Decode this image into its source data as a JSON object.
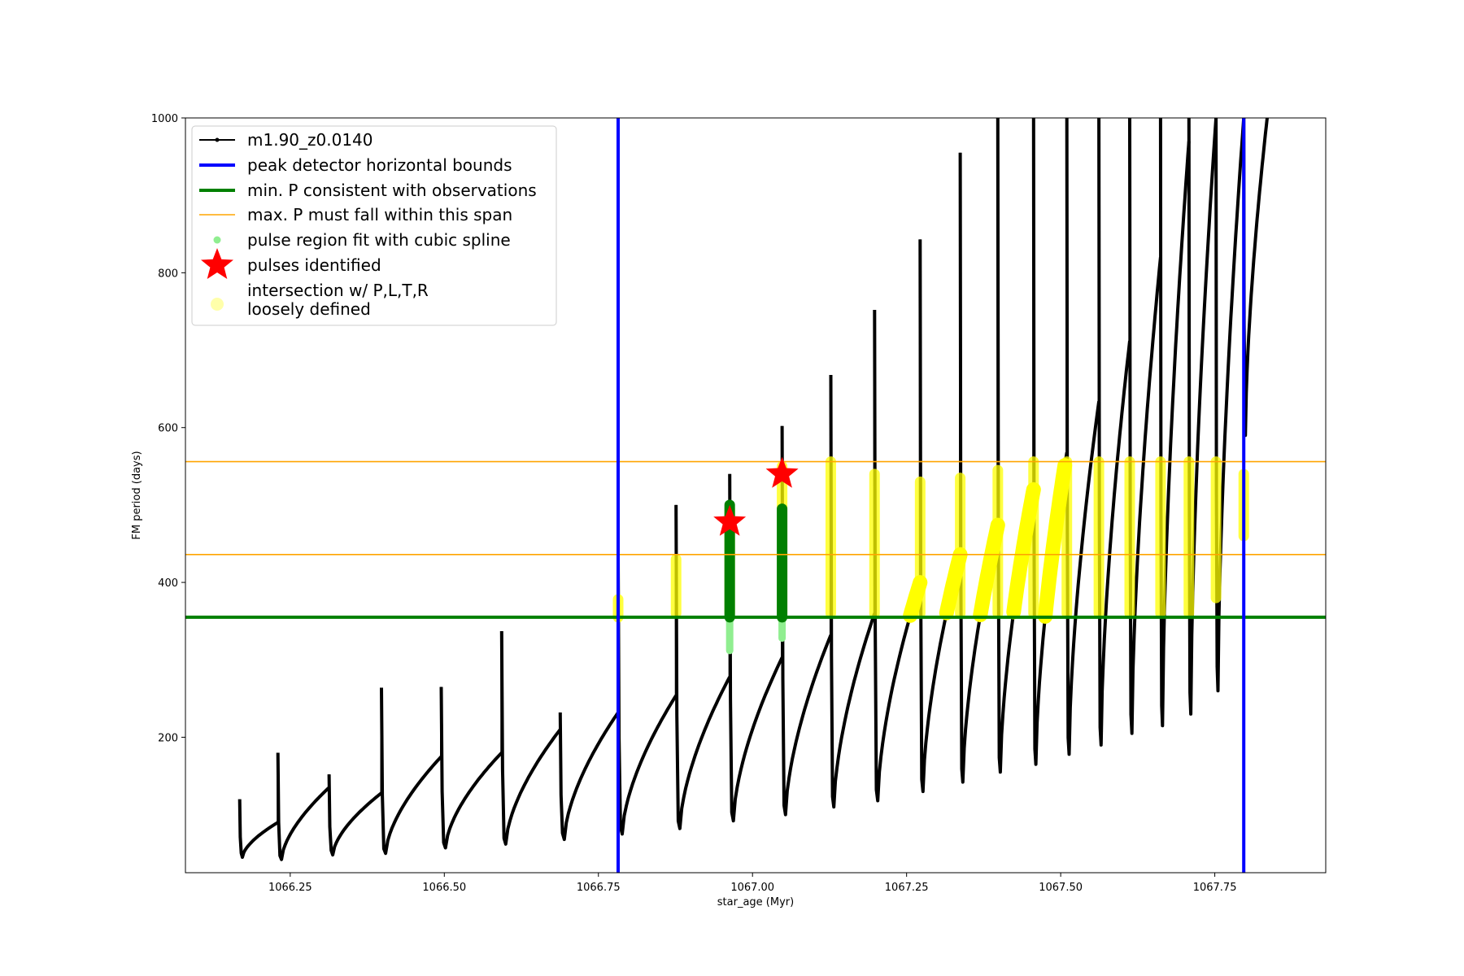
{
  "chart_data": {
    "type": "scatter",
    "title": "",
    "xlabel": "star_age (Myr)",
    "ylabel": "FM period (days)",
    "xlim": [
      1066.08,
      1067.93
    ],
    "ylim": [
      25,
      1000
    ],
    "xticks": [
      1066.25,
      1066.5,
      1066.75,
      1067.0,
      1067.25,
      1067.5,
      1067.75
    ],
    "xtick_labels": [
      "1066.25",
      "1066.50",
      "1066.75",
      "1067.00",
      "1067.25",
      "1067.50",
      "1067.75"
    ],
    "yticks": [
      200,
      400,
      600,
      800,
      1000
    ],
    "ytick_labels": [
      "200",
      "400",
      "600",
      "800",
      "1000"
    ],
    "grid": false,
    "legend_position": "top-left",
    "legend": [
      {
        "label": "m1.90_z0.0140",
        "style": "black line with dot markers",
        "color": "#000000"
      },
      {
        "label": "peak detector horizontal bounds",
        "style": "thick line",
        "color": "#0000ff"
      },
      {
        "label": "min. P consistent with observations",
        "style": "thick line",
        "color": "#008000"
      },
      {
        "label": "max. P must fall within this span",
        "style": "thin line",
        "color": "#ffa500"
      },
      {
        "label": "pulse region fit with cubic spline",
        "style": "dot",
        "color": "#90ee90"
      },
      {
        "label": "pulses identified",
        "style": "star",
        "color": "#ff0000"
      },
      {
        "label": "intersection w/ P,L,T,R\nloosely defined",
        "style": "large dot",
        "color": "#ffffaa"
      }
    ],
    "vertical_bounds_x": [
      1066.782,
      1067.797
    ],
    "min_period_line_y": 355,
    "max_period_span_y": [
      436,
      556
    ],
    "pulse_cycles": [
      {
        "start": 1066.168,
        "min": 45,
        "peak": 90,
        "end": 1066.23,
        "spike": 120
      },
      {
        "start": 1066.23,
        "min": 42,
        "peak": 135,
        "end": 1066.313,
        "spike": 180
      },
      {
        "start": 1066.313,
        "min": 48,
        "peak": 128,
        "end": 1066.398,
        "spike": 152
      },
      {
        "start": 1066.398,
        "min": 50,
        "peak": 175,
        "end": 1066.495,
        "spike": 264
      },
      {
        "start": 1066.495,
        "min": 57,
        "peak": 180,
        "end": 1066.593,
        "spike": 265
      },
      {
        "start": 1066.593,
        "min": 62,
        "peak": 210,
        "end": 1066.688,
        "spike": 337
      },
      {
        "start": 1066.688,
        "min": 68,
        "peak": 232,
        "end": 1066.782,
        "spike": 232
      },
      {
        "start": 1066.782,
        "min": 75,
        "peak": 254,
        "end": 1066.876,
        "spike": 430
      },
      {
        "start": 1066.876,
        "min": 82,
        "peak": 278,
        "end": 1066.963,
        "spike": 500
      },
      {
        "start": 1066.963,
        "min": 92,
        "peak": 303,
        "end": 1067.048,
        "spike": 540
      },
      {
        "start": 1067.048,
        "min": 100,
        "peak": 332,
        "end": 1067.127,
        "spike": 602
      },
      {
        "start": 1067.127,
        "min": 110,
        "peak": 360,
        "end": 1067.198,
        "spike": 668
      },
      {
        "start": 1067.198,
        "min": 118,
        "peak": 400,
        "end": 1067.272,
        "spike": 752
      },
      {
        "start": 1067.272,
        "min": 130,
        "peak": 436,
        "end": 1067.337,
        "spike": 843
      },
      {
        "start": 1067.337,
        "min": 142,
        "peak": 474,
        "end": 1067.398,
        "spike": 955
      },
      {
        "start": 1067.398,
        "min": 155,
        "peak": 520,
        "end": 1067.456,
        "spike": 1000
      },
      {
        "start": 1067.456,
        "min": 165,
        "peak": 568,
        "end": 1067.51,
        "spike": 1000
      },
      {
        "start": 1067.51,
        "min": 178,
        "peak": 634,
        "end": 1067.562,
        "spike": 1000
      },
      {
        "start": 1067.562,
        "min": 190,
        "peak": 712,
        "end": 1067.612,
        "spike": 1000
      },
      {
        "start": 1067.612,
        "min": 205,
        "peak": 820,
        "end": 1067.662,
        "spike": 1000
      },
      {
        "start": 1067.662,
        "min": 215,
        "peak": 970,
        "end": 1067.708,
        "spike": 1000
      },
      {
        "start": 1067.708,
        "min": 230,
        "peak": 1000,
        "end": 1067.752,
        "spike": 1000
      },
      {
        "start": 1067.752,
        "min": 260,
        "peak": 1000,
        "end": 1067.797,
        "spike": 1000
      },
      {
        "start": 1067.797,
        "min": 590,
        "peak": 1000,
        "end": 1067.835,
        "spike": 1000
      }
    ],
    "spline_fit_regions": [
      {
        "x": 1066.963,
        "ymin": 312,
        "ymax": 500
      },
      {
        "x": 1067.048,
        "ymin": 328,
        "ymax": 495
      }
    ],
    "pulses_identified": [
      {
        "x": 1066.963,
        "y": 478
      },
      {
        "x": 1067.048,
        "y": 540
      }
    ],
    "intersection_regions": [
      {
        "x": 1066.782,
        "ymin": 355,
        "ymax": 378
      },
      {
        "x": 1066.876,
        "ymin": 360,
        "ymax": 430
      },
      {
        "x": 1066.963,
        "ymin": 360,
        "ymax": 495
      },
      {
        "x": 1067.048,
        "ymin": 360,
        "ymax": 550
      },
      {
        "x": 1067.127,
        "ymin": 360,
        "ymax": 556
      },
      {
        "x": 1067.198,
        "ymin": 360,
        "ymax": 540
      },
      {
        "x": 1067.272,
        "ymin": 360,
        "ymax": 530
      },
      {
        "x": 1067.337,
        "ymin": 360,
        "ymax": 535
      },
      {
        "x": 1067.398,
        "ymin": 360,
        "ymax": 545
      },
      {
        "x": 1067.456,
        "ymin": 360,
        "ymax": 556
      },
      {
        "x": 1067.51,
        "ymin": 360,
        "ymax": 556
      },
      {
        "x": 1067.562,
        "ymin": 360,
        "ymax": 556
      },
      {
        "x": 1067.612,
        "ymin": 360,
        "ymax": 556
      },
      {
        "x": 1067.662,
        "ymin": 360,
        "ymax": 556
      },
      {
        "x": 1067.708,
        "ymin": 360,
        "ymax": 556
      },
      {
        "x": 1067.752,
        "ymin": 380,
        "ymax": 556
      },
      {
        "x": 1067.797,
        "ymin": 460,
        "ymax": 540
      }
    ],
    "colors": {
      "track": "#000000",
      "bounds": "#0000ff",
      "min_period": "#008000",
      "max_span": "#ffa500",
      "spline": "#90ee90",
      "pulse": "#ff0000",
      "intersection": "#ffff00",
      "intersection_legend": "#ffffaa"
    }
  }
}
